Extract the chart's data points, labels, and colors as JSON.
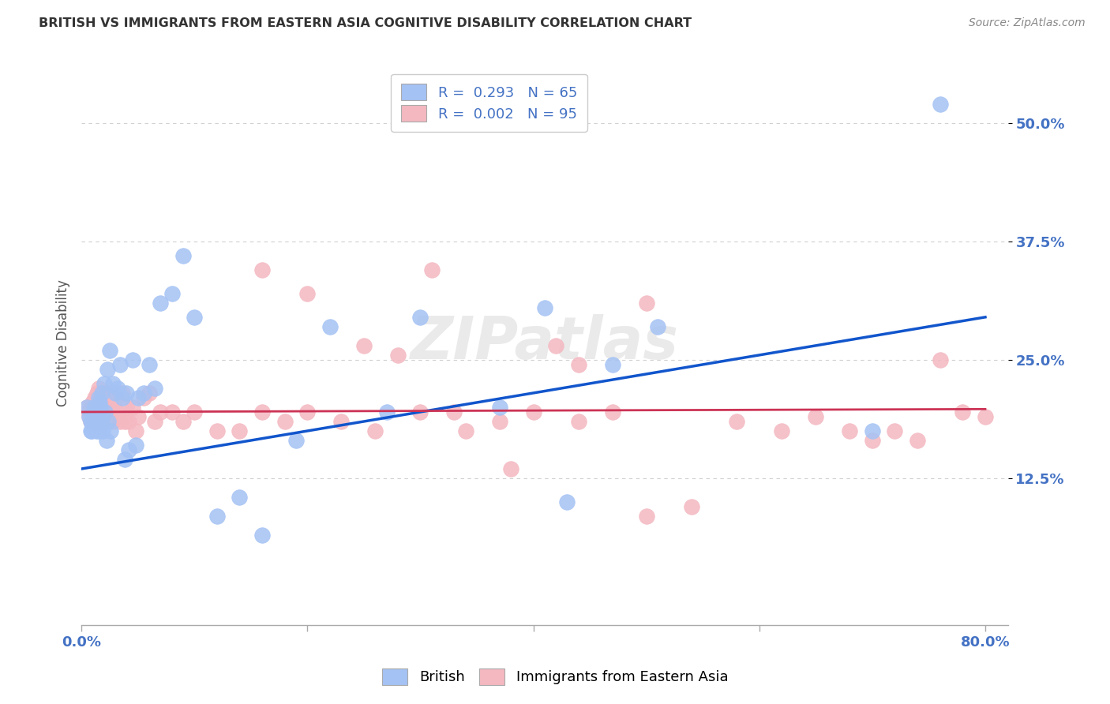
{
  "title": "BRITISH VS IMMIGRANTS FROM EASTERN ASIA COGNITIVE DISABILITY CORRELATION CHART",
  "source": "Source: ZipAtlas.com",
  "ylabel": "Cognitive Disability",
  "xlim": [
    0.0,
    0.82
  ],
  "ylim": [
    -0.03,
    0.565
  ],
  "yticks": [
    0.125,
    0.25,
    0.375,
    0.5
  ],
  "ytick_labels": [
    "12.5%",
    "25.0%",
    "37.5%",
    "50.0%"
  ],
  "xticks": [
    0.0,
    0.2,
    0.4,
    0.6,
    0.8
  ],
  "xtick_labels": [
    "0.0%",
    "",
    "",
    "",
    "80.0%"
  ],
  "legend_r1": "R =  0.293   N = 65",
  "legend_r2": "R =  0.002   N = 95",
  "blue_color": "#a4c2f4",
  "pink_color": "#f4b8c1",
  "blue_line_color": "#1155cc",
  "pink_line_color": "#cc3355",
  "background_color": "#ffffff",
  "grid_color": "#cccccc",
  "title_color": "#333333",
  "axis_label_color": "#555555",
  "tick_color": "#4472c4",
  "blue_points_x": [
    0.005,
    0.007,
    0.008,
    0.008,
    0.009,
    0.009,
    0.01,
    0.01,
    0.011,
    0.011,
    0.012,
    0.012,
    0.013,
    0.013,
    0.014,
    0.014,
    0.015,
    0.015,
    0.015,
    0.016,
    0.016,
    0.017,
    0.017,
    0.018,
    0.018,
    0.019,
    0.02,
    0.021,
    0.022,
    0.023,
    0.024,
    0.025,
    0.026,
    0.028,
    0.03,
    0.032,
    0.034,
    0.036,
    0.038,
    0.04,
    0.042,
    0.045,
    0.048,
    0.05,
    0.055,
    0.06,
    0.065,
    0.07,
    0.08,
    0.09,
    0.1,
    0.12,
    0.14,
    0.16,
    0.19,
    0.22,
    0.27,
    0.3,
    0.37,
    0.41,
    0.43,
    0.47,
    0.51,
    0.7,
    0.76
  ],
  "blue_points_y": [
    0.2,
    0.19,
    0.185,
    0.175,
    0.185,
    0.175,
    0.19,
    0.18,
    0.2,
    0.185,
    0.195,
    0.18,
    0.19,
    0.175,
    0.195,
    0.18,
    0.21,
    0.195,
    0.175,
    0.205,
    0.185,
    0.2,
    0.18,
    0.215,
    0.185,
    0.175,
    0.225,
    0.195,
    0.165,
    0.24,
    0.185,
    0.26,
    0.175,
    0.225,
    0.215,
    0.22,
    0.245,
    0.21,
    0.145,
    0.215,
    0.155,
    0.25,
    0.16,
    0.21,
    0.215,
    0.245,
    0.22,
    0.31,
    0.32,
    0.36,
    0.295,
    0.085,
    0.105,
    0.065,
    0.165,
    0.285,
    0.195,
    0.295,
    0.2,
    0.305,
    0.1,
    0.245,
    0.285,
    0.175,
    0.52
  ],
  "pink_points_x": [
    0.005,
    0.006,
    0.007,
    0.008,
    0.008,
    0.009,
    0.009,
    0.01,
    0.01,
    0.01,
    0.011,
    0.011,
    0.012,
    0.012,
    0.013,
    0.013,
    0.013,
    0.014,
    0.014,
    0.015,
    0.015,
    0.015,
    0.015,
    0.016,
    0.016,
    0.016,
    0.017,
    0.017,
    0.018,
    0.018,
    0.018,
    0.019,
    0.019,
    0.02,
    0.02,
    0.021,
    0.022,
    0.023,
    0.024,
    0.025,
    0.026,
    0.027,
    0.028,
    0.03,
    0.032,
    0.034,
    0.036,
    0.038,
    0.04,
    0.042,
    0.045,
    0.048,
    0.05,
    0.055,
    0.06,
    0.065,
    0.07,
    0.08,
    0.09,
    0.1,
    0.12,
    0.14,
    0.16,
    0.18,
    0.2,
    0.23,
    0.26,
    0.3,
    0.34,
    0.37,
    0.4,
    0.44,
    0.47,
    0.5,
    0.54,
    0.58,
    0.62,
    0.65,
    0.68,
    0.7,
    0.72,
    0.74,
    0.76,
    0.78,
    0.8,
    0.31,
    0.2,
    0.25,
    0.38,
    0.28,
    0.44,
    0.16,
    0.5,
    0.33,
    0.42
  ],
  "pink_points_y": [
    0.2,
    0.195,
    0.19,
    0.195,
    0.185,
    0.2,
    0.185,
    0.205,
    0.195,
    0.185,
    0.205,
    0.195,
    0.21,
    0.195,
    0.21,
    0.2,
    0.185,
    0.215,
    0.195,
    0.22,
    0.205,
    0.195,
    0.18,
    0.215,
    0.2,
    0.185,
    0.21,
    0.195,
    0.215,
    0.205,
    0.185,
    0.21,
    0.195,
    0.215,
    0.195,
    0.215,
    0.205,
    0.195,
    0.195,
    0.215,
    0.205,
    0.195,
    0.185,
    0.21,
    0.195,
    0.185,
    0.215,
    0.185,
    0.2,
    0.185,
    0.2,
    0.175,
    0.19,
    0.21,
    0.215,
    0.185,
    0.195,
    0.195,
    0.185,
    0.195,
    0.175,
    0.175,
    0.195,
    0.185,
    0.195,
    0.185,
    0.175,
    0.195,
    0.175,
    0.185,
    0.195,
    0.185,
    0.195,
    0.085,
    0.095,
    0.185,
    0.175,
    0.19,
    0.175,
    0.165,
    0.175,
    0.165,
    0.25,
    0.195,
    0.19,
    0.345,
    0.32,
    0.265,
    0.135,
    0.255,
    0.245,
    0.345,
    0.31,
    0.195,
    0.265
  ]
}
